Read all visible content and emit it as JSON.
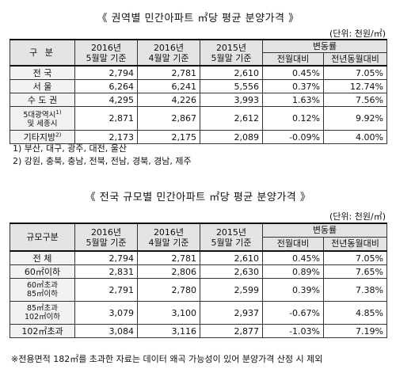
{
  "table1": {
    "title": "《 권역별 민간아파트 ㎡당 평균 분양가격 》",
    "unit": "(단위: 천원/㎡)",
    "header": {
      "region": "구   분",
      "col1_year": "2016년",
      "col1_month": "5월말 기준",
      "col2_year": "2016년",
      "col2_month": "4월말 기준",
      "col3_year": "2015년",
      "col3_month": "5월말 기준",
      "change": "변동률",
      "mom": "전월대비",
      "yoy": "전년동월대비"
    },
    "rows": [
      {
        "label": "전   국",
        "v1": "2,794",
        "v2": "2,781",
        "v3": "2,610",
        "mom": "0.45%",
        "yoy": "7.05%"
      },
      {
        "label": "서   울",
        "v1": "6,264",
        "v2": "6,241",
        "v3": "5,556",
        "mom": "0.37%",
        "yoy": "12.74%"
      },
      {
        "label": "수 도 권",
        "v1": "4,295",
        "v2": "4,226",
        "v3": "3,993",
        "mom": "1.63%",
        "yoy": "7.56%"
      },
      {
        "label_line1": "5대광역시",
        "label_line2": "및 세종시",
        "sup": "1)",
        "v1": "2,871",
        "v2": "2,867",
        "v3": "2,612",
        "mom": "0.12%",
        "yoy": "9.92%"
      },
      {
        "label": "기타지방",
        "sup": "2)",
        "v1": "2,173",
        "v2": "2,175",
        "v3": "2,089",
        "mom": "-0.09%",
        "yoy": "4.00%"
      }
    ],
    "notes": [
      "1) 부산, 대구, 광주, 대전, 울산",
      "2) 강원, 충북, 충남, 전북, 전남, 경북, 경남, 제주"
    ]
  },
  "table2": {
    "title": "《 전국 규모별 민간아파트 ㎡당 평균 분양가격 》",
    "unit": "(단위: 천원/㎡)",
    "header": {
      "region": "규모구분",
      "col1_year": "2016년",
      "col1_month": "5월말 기준",
      "col2_year": "2016년",
      "col2_month": "4월말 기준",
      "col3_year": "2015년",
      "col3_month": "5월말 기준",
      "change": "변동률",
      "mom": "전월대비",
      "yoy": "전년동월대비"
    },
    "rows": [
      {
        "label": "전   체",
        "v1": "2,794",
        "v2": "2,781",
        "v3": "2,610",
        "mom": "0.45%",
        "yoy": "7.05%"
      },
      {
        "label": "60㎡이하",
        "v1": "2,831",
        "v2": "2,806",
        "v3": "2,630",
        "mom": "0.89%",
        "yoy": "7.65%"
      },
      {
        "label_line1": "60㎡초과",
        "label_line2": "85㎡이하",
        "v1": "2,791",
        "v2": "2,780",
        "v3": "2,599",
        "mom": "0.39%",
        "yoy": "7.38%"
      },
      {
        "label_line1": "85㎡초과",
        "label_line2": "102㎡이하",
        "v1": "3,079",
        "v2": "3,100",
        "v3": "2,937",
        "mom": "-0.67%",
        "yoy": "4.85%"
      },
      {
        "label": "102㎡초과",
        "v1": "3,084",
        "v2": "3,116",
        "v3": "2,877",
        "mom": "-1.03%",
        "yoy": "7.19%"
      }
    ]
  },
  "footnote": "※전용면적 182㎡를 초과한 자료는 데이터 왜곡 가능성이 있어 분양가격 산정 시 제외"
}
